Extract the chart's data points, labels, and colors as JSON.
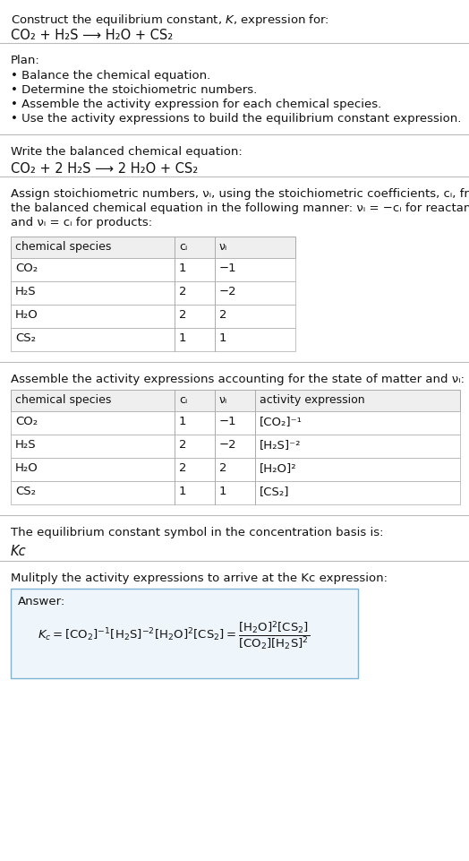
{
  "title_line1": "Construct the equilibrium constant, $K$, expression for:",
  "title_line2_plain": "CO₂ + H₂S ⟶ H₂O + CS₂",
  "plan_header": "Plan:",
  "plan_items": [
    "• Balance the chemical equation.",
    "• Determine the stoichiometric numbers.",
    "• Assemble the activity expression for each chemical species.",
    "• Use the activity expressions to build the equilibrium constant expression."
  ],
  "balanced_header": "Write the balanced chemical equation:",
  "balanced_eq_plain": "CO₂ + 2 H₂S ⟶ 2 H₂O + CS₂",
  "stoich_lines": [
    "Assign stoichiometric numbers, νᵢ, using the stoichiometric coefficients, cᵢ, from",
    "the balanced chemical equation in the following manner: νᵢ = −cᵢ for reactants",
    "and νᵢ = cᵢ for products:"
  ],
  "table1_headers": [
    "chemical species",
    "cᵢ",
    "νᵢ"
  ],
  "table1_data": [
    [
      "CO₂",
      "1",
      "−1"
    ],
    [
      "H₂S",
      "2",
      "−2"
    ],
    [
      "H₂O",
      "2",
      "2"
    ],
    [
      "CS₂",
      "1",
      "1"
    ]
  ],
  "activity_header": "Assemble the activity expressions accounting for the state of matter and νᵢ:",
  "table2_headers": [
    "chemical species",
    "cᵢ",
    "νᵢ",
    "activity expression"
  ],
  "table2_data": [
    [
      "CO₂",
      "1",
      "−1",
      "[CO₂]⁻¹"
    ],
    [
      "H₂S",
      "2",
      "−2",
      "[H₂S]⁻²"
    ],
    [
      "H₂O",
      "2",
      "2",
      "[H₂O]²"
    ],
    [
      "CS₂",
      "1",
      "1",
      "[CS₂]"
    ]
  ],
  "kc_header": "The equilibrium constant symbol in the concentration basis is:",
  "kc_symbol": "Kᴄ",
  "multiply_header": "Mulitply the activity expressions to arrive at the Kᴄ expression:",
  "answer_label": "Answer:",
  "bg_color": "#ffffff",
  "table_header_bg": "#efefef",
  "table_border_color": "#aaaaaa",
  "answer_box_bg": "#eef6fc",
  "answer_box_border": "#7fb3d3",
  "separator_color": "#bbbbbb",
  "text_color": "#111111",
  "body_fontsize": 9.5,
  "small_fontsize": 9.0,
  "fig_width": 5.24,
  "fig_height": 9.61,
  "dpi": 100
}
